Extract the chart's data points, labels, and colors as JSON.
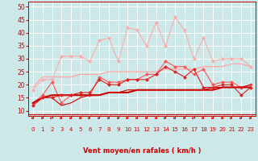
{
  "background_color": "#cce8e8",
  "grid_color": "#ffffff",
  "xlabel": "Vent moyen/en rafales ( km/h )",
  "xlabel_color": "#cc0000",
  "tick_color": "#cc0000",
  "xlim": [
    -0.5,
    23.5
  ],
  "ylim": [
    8,
    52
  ],
  "yticks": [
    10,
    15,
    20,
    25,
    30,
    35,
    40,
    45,
    50
  ],
  "xticks": [
    0,
    1,
    2,
    3,
    4,
    5,
    6,
    7,
    8,
    9,
    10,
    11,
    12,
    13,
    14,
    15,
    16,
    17,
    18,
    19,
    20,
    21,
    22,
    23
  ],
  "series": [
    {
      "y": [
        19,
        23,
        23,
        23,
        23,
        24,
        24,
        24,
        25,
        25,
        25,
        25,
        25,
        25,
        26,
        26,
        26,
        26,
        27,
        27,
        27,
        28,
        28,
        27
      ],
      "color": "#ffaaaa",
      "lw": 1.0,
      "marker": null
    },
    {
      "y": [
        18,
        22,
        22,
        31,
        31,
        31,
        29,
        37,
        38,
        29,
        42,
        41,
        35,
        44,
        35,
        46,
        41,
        30,
        38,
        29,
        30,
        30,
        30,
        27
      ],
      "color": "#ffaaaa",
      "lw": 0.8,
      "marker": "D",
      "ms": 2.0
    },
    {
      "y": [
        13,
        16,
        21,
        13,
        16,
        16,
        16,
        23,
        21,
        21,
        22,
        22,
        24,
        24,
        29,
        27,
        27,
        24,
        26,
        20,
        21,
        21,
        19,
        20
      ],
      "color": "#ff5555",
      "lw": 0.8,
      "marker": "D",
      "ms": 2.0
    },
    {
      "y": [
        13,
        15,
        16,
        16,
        16,
        16,
        16,
        16,
        17,
        17,
        17,
        18,
        18,
        18,
        18,
        18,
        18,
        18,
        18,
        18,
        19,
        19,
        19,
        19
      ],
      "color": "#cc0000",
      "lw": 1.5,
      "marker": null
    },
    {
      "y": [
        13,
        15,
        15,
        12,
        13,
        15,
        16,
        16,
        17,
        17,
        18,
        18,
        18,
        18,
        18,
        18,
        18,
        18,
        18,
        19,
        19,
        19,
        19,
        20
      ],
      "color": "#cc0000",
      "lw": 0.8,
      "marker": null
    },
    {
      "y": [
        12,
        15,
        15,
        16,
        16,
        17,
        17,
        22,
        20,
        20,
        22,
        22,
        22,
        24,
        27,
        25,
        23,
        26,
        19,
        19,
        20,
        20,
        16,
        19
      ],
      "color": "#dd2222",
      "lw": 0.8,
      "marker": "D",
      "ms": 2.0
    }
  ],
  "arrow_symbol": "↙",
  "arrow_color": "#cc0000",
  "arrow_fontsize": 5.5
}
